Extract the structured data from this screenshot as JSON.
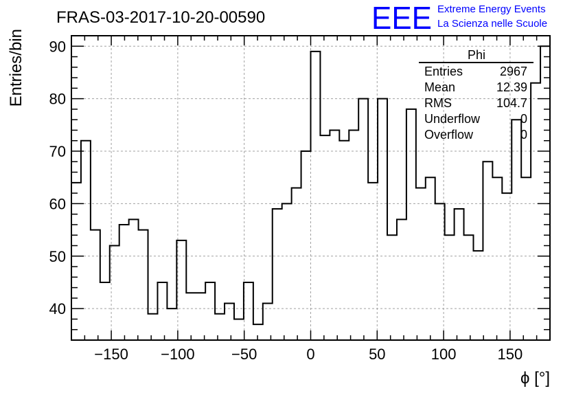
{
  "page": {
    "title": "FRAS-03-2017-10-20-00590",
    "logo": {
      "mark": "EEE",
      "line1": "Extreme Energy Events",
      "line2": "La Scienza nelle Scuole",
      "color": "#0000ff"
    }
  },
  "stats_box": {
    "name": "Phi",
    "rows": [
      {
        "label": "Entries",
        "value": "2967"
      },
      {
        "label": "Mean",
        "value": "12.39"
      },
      {
        "label": "RMS",
        "value": "104.7"
      },
      {
        "label": "Underflow",
        "value": "0"
      },
      {
        "label": "Overflow",
        "value": "0"
      }
    ]
  },
  "chart_data": {
    "type": "bar",
    "title": "FRAS-03-2017-10-20-00590",
    "xlabel": "ϕ [°]",
    "ylabel": "Entries/bin",
    "xlim": [
      -180,
      180
    ],
    "ylim": [
      34,
      92
    ],
    "grid": true,
    "x_ticks": [
      -150,
      -100,
      -50,
      0,
      50,
      100,
      150
    ],
    "y_ticks": [
      40,
      50,
      60,
      70,
      80,
      90
    ],
    "bin_edges_start": -180,
    "bin_width": 7.2,
    "values": [
      64,
      72,
      55,
      45,
      52,
      56,
      57,
      55,
      39,
      45,
      40,
      53,
      43,
      43,
      45,
      39,
      41,
      38,
      45,
      37,
      41,
      59,
      60,
      63,
      70,
      89,
      73,
      74,
      72,
      74,
      80,
      64,
      80,
      54,
      57,
      78,
      63,
      65,
      60,
      54,
      59,
      54,
      51,
      68,
      65,
      62,
      76,
      65,
      83,
      90
    ]
  }
}
